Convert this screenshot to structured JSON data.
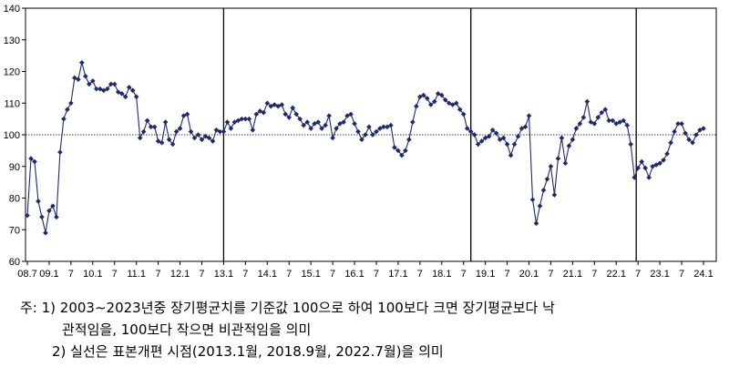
{
  "chart_data": {
    "type": "line",
    "title": "",
    "xlabel": "",
    "ylabel": "",
    "ylim": [
      60,
      140
    ],
    "y_ticks": [
      60,
      70,
      80,
      90,
      100,
      110,
      120,
      130,
      140
    ],
    "reference_line": 100,
    "marker": "diamond",
    "line_color": "#1f2a6b",
    "marker_color": "#1f2a6b",
    "grid": false,
    "x_tick_labels": [
      {
        "label": "08.7",
        "index": 0
      },
      {
        "label": "09.1",
        "index": 6
      },
      {
        "label": "7",
        "index": 12
      },
      {
        "label": "10.1",
        "index": 18
      },
      {
        "label": "7",
        "index": 24
      },
      {
        "label": "11.1",
        "index": 30
      },
      {
        "label": "7",
        "index": 36
      },
      {
        "label": "12.1",
        "index": 42
      },
      {
        "label": "7",
        "index": 48
      },
      {
        "label": "13.1",
        "index": 54
      },
      {
        "label": "7",
        "index": 60
      },
      {
        "label": "14.1",
        "index": 66
      },
      {
        "label": "7",
        "index": 72
      },
      {
        "label": "15.1",
        "index": 78
      },
      {
        "label": "7",
        "index": 84
      },
      {
        "label": "16.1",
        "index": 90
      },
      {
        "label": "7",
        "index": 96
      },
      {
        "label": "17.1",
        "index": 102
      },
      {
        "label": "7",
        "index": 108
      },
      {
        "label": "18.1",
        "index": 114
      },
      {
        "label": "7",
        "index": 120
      },
      {
        "label": "19.1",
        "index": 126
      },
      {
        "label": "7",
        "index": 132
      },
      {
        "label": "20.1",
        "index": 138
      },
      {
        "label": "7",
        "index": 144
      },
      {
        "label": "21.1",
        "index": 150
      },
      {
        "label": "7",
        "index": 156
      },
      {
        "label": "22.1",
        "index": 162
      },
      {
        "label": "7",
        "index": 168
      },
      {
        "label": "23.1",
        "index": 174
      },
      {
        "label": "7",
        "index": 180
      },
      {
        "label": "24.1",
        "index": 186
      }
    ],
    "vertical_lines": [
      {
        "at_index": 54
      },
      {
        "at_index": 122
      },
      {
        "at_index": 167.5
      }
    ],
    "series": [
      {
        "values": [
          74.5,
          92.5,
          91.5,
          79.0,
          74.0,
          69.0,
          76.0,
          77.5,
          74.0,
          94.5,
          105.0,
          108.0,
          110.0,
          118.0,
          117.5,
          122.8,
          118.5,
          116.0,
          117.0,
          114.5,
          114.5,
          114.0,
          114.5,
          116.0,
          116.0,
          113.5,
          113.0,
          112.0,
          115.0,
          114.0,
          112.0,
          99.0,
          101.0,
          104.5,
          102.5,
          102.5,
          98.0,
          97.5,
          104.0,
          98.5,
          97.0,
          101.0,
          102.0,
          106.0,
          106.5,
          101.0,
          99.0,
          100.0,
          98.5,
          99.5,
          99.0,
          98.0,
          101.5,
          101.0,
          101.0,
          104.0,
          102.0,
          104.0,
          104.5,
          105.0,
          105.0,
          105.0,
          101.5,
          106.5,
          107.5,
          107.0,
          110.0,
          109.0,
          109.5,
          109.0,
          109.5,
          106.5,
          105.5,
          108.5,
          106.5,
          105.0,
          103.0,
          104.0,
          102.0,
          103.5,
          104.0,
          102.0,
          103.0,
          106.0,
          99.0,
          102.0,
          103.5,
          104.0,
          106.0,
          106.5,
          103.5,
          101.0,
          98.5,
          100.0,
          102.5,
          100.0,
          101.0,
          102.0,
          102.5,
          102.5,
          103.0,
          96.0,
          95.0,
          93.5,
          95.0,
          98.5,
          104.0,
          109.0,
          112.0,
          112.5,
          111.5,
          109.5,
          110.5,
          113.0,
          112.5,
          111.0,
          110.0,
          109.5,
          110.0,
          108.0,
          106.5,
          102.0,
          101.0,
          100.0,
          97.0,
          98.0,
          99.0,
          99.5,
          101.5,
          100.5,
          98.5,
          99.0,
          97.0,
          93.5,
          97.0,
          99.5,
          102.0,
          102.5,
          106.0,
          79.5,
          72.0,
          77.5,
          82.5,
          86.0,
          90.0,
          81.0,
          92.5,
          99.0,
          91.0,
          96.5,
          98.5,
          102.0,
          103.5,
          105.5,
          110.5,
          104.0,
          103.5,
          105.5,
          107.0,
          108.0,
          104.5,
          104.5,
          103.5,
          104.0,
          104.5,
          103.0,
          97.0,
          86.5,
          89.5,
          91.5,
          89.5,
          86.5,
          90.0,
          90.5,
          91.0,
          92.0,
          94.0,
          97.5,
          101.0,
          103.5,
          103.5,
          100.5,
          98.5,
          97.5,
          100.0,
          101.5,
          102.0
        ]
      }
    ]
  },
  "notes": {
    "line1": "주: 1) 2003∼2023년중 장기평균치를 기준값 100으로 하여 100보다 크면 장기평균보다 낙",
    "line1b": "관적임을, 100보다 작으면 비관적임을 의미",
    "line2": "2) 실선은 표본개편 시점(2013.1월, 2018.9월, 2022.7월)을 의미"
  }
}
